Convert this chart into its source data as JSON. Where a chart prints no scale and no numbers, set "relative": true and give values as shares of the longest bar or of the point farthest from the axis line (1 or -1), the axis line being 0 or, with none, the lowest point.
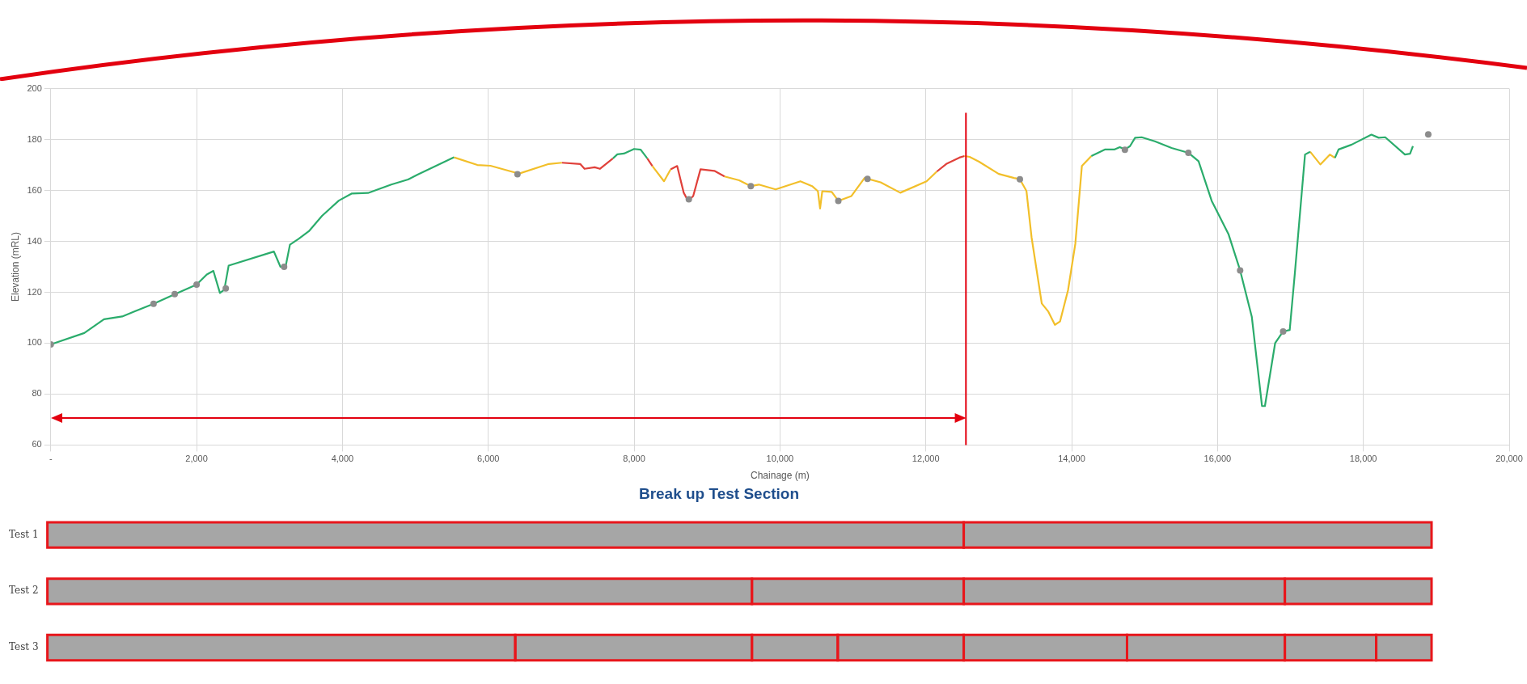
{
  "chart_data": [
    {
      "type": "line",
      "xlabel": "Chainage (m)",
      "ylabel": "Elevation (mRL)",
      "xlim": [
        0,
        20000
      ],
      "xticks": [
        {
          "value": 0,
          "label": "-"
        },
        {
          "value": 2000,
          "label": "2,000"
        },
        {
          "value": 4000,
          "label": "4,000"
        },
        {
          "value": 6000,
          "label": "6,000"
        },
        {
          "value": 8000,
          "label": "8,000"
        },
        {
          "value": 10000,
          "label": "10,000"
        },
        {
          "value": 12000,
          "label": "12,000"
        },
        {
          "value": 14000,
          "label": "14,000"
        },
        {
          "value": 16000,
          "label": "16,000"
        },
        {
          "value": 18000,
          "label": "18,000"
        },
        {
          "value": 20000,
          "label": "20,000"
        }
      ],
      "ylim": [
        60,
        200
      ],
      "yticks": [
        60,
        80,
        100,
        120,
        140,
        160,
        180,
        200
      ],
      "grid": true,
      "series": [
        {
          "type": "line",
          "marker": "none",
          "color": "#2bac6c",
          "x": [
            0,
            460,
            730,
            980,
            1140,
            1410,
            1680,
            2000,
            2140,
            2230,
            2320,
            2380,
            2440,
            3060,
            3150,
            3220,
            3280,
            3400,
            3540,
            3720,
            3950,
            4130,
            4350,
            4670,
            4900,
            5030,
            5530,
            6600,
            7710,
            7770,
            7860,
            8000,
            8090,
            8180,
            11000,
            14270,
            14460,
            14590,
            14660,
            14730,
            14800,
            14870,
            14960,
            15140,
            15370,
            15600,
            15740,
            15920,
            16150,
            16310,
            16470,
            16610,
            16650,
            16790,
            16900,
            16990,
            17060,
            17200,
            17270,
            17400,
            17610,
            17660,
            17840,
            18110,
            18210,
            18300,
            18570,
            18640,
            18680
          ],
          "values": [
            99.5,
            104,
            109.4,
            110.5,
            112.4,
            115.5,
            119,
            123,
            127,
            128.4,
            119.7,
            121,
            130.5,
            136,
            130,
            130,
            138.7,
            141,
            144,
            150,
            156,
            158.8,
            159,
            162.3,
            164.3,
            166.2,
            173,
            null,
            172.6,
            174.2,
            174.5,
            176.3,
            176,
            172.6,
            null,
            173.5,
            176.1,
            176.1,
            177,
            176.1,
            177.4,
            180.7,
            180.9,
            179.3,
            176.7,
            174.8,
            171.5,
            155.9,
            142.9,
            128.6,
            110.4,
            75.3,
            75.3,
            100,
            104.6,
            105.2,
            127.3,
            174.1,
            175.2,
            null,
            172.8,
            176.1,
            178,
            181.9,
            180.7,
            180.9,
            174.1,
            174.4,
            177.4
          ]
        },
        {
          "type": "line",
          "marker": "none",
          "color": "#f2bf2a",
          "x": [
            5530,
            5850,
            6030,
            6370,
            6400,
            6830,
            7010,
            7500,
            8250,
            8410,
            8500,
            8900,
            9240,
            9440,
            9600,
            9710,
            9940,
            10280,
            10440,
            10520,
            10550,
            10580,
            10710,
            10800,
            10980,
            11160,
            11380,
            11650,
            12010,
            12150,
            12300,
            12530,
            12600,
            12730,
            13000,
            13210,
            13290,
            13380,
            13450,
            13590,
            13680,
            13770,
            13840,
            13950,
            14050,
            14140,
            14270,
            16000,
            17270,
            17410,
            17540,
            17610
          ],
          "values": [
            173,
            170,
            169.7,
            167,
            166.4,
            170.4,
            170.9,
            null,
            169.6,
            163.6,
            168.3,
            null,
            165.5,
            164,
            161.7,
            162.3,
            160.4,
            163.6,
            161.7,
            159.7,
            152.9,
            159.7,
            159.4,
            155.9,
            157.8,
            164.9,
            163.2,
            159.1,
            163.6,
            167.4,
            null,
            173.5,
            173.2,
            171.3,
            166.5,
            164.9,
            164.4,
            159.8,
            141.6,
            115.6,
            112.4,
            107.2,
            108.5,
            120.8,
            139,
            169.6,
            173.5,
            null,
            175.2,
            170.2,
            174.1,
            172.8
          ]
        },
        {
          "type": "line",
          "marker": "none",
          "color": "#e0403a",
          "x": [
            7010,
            7260,
            7320,
            7460,
            7530,
            7710,
            7900,
            8180,
            8250,
            8350,
            8500,
            8590,
            8680,
            8740,
            8810,
            8910,
            9100,
            9240,
            10000,
            12150,
            12280,
            12460,
            12530
          ],
          "values": [
            170.9,
            170.4,
            168.5,
            169.1,
            168.5,
            172.6,
            null,
            172.6,
            169.6,
            null,
            168.3,
            169.6,
            159.1,
            155.9,
            157.8,
            168.3,
            167.7,
            165.5,
            null,
            167.4,
            170.4,
            172.9,
            173.5
          ]
        },
        {
          "type": "scatter",
          "marker": "circle",
          "color": "#8c8c8c",
          "x": [
            0,
            1410,
            1700,
            2000,
            2400,
            3200,
            6400,
            8750,
            9600,
            10800,
            11200,
            13290,
            14730,
            15600,
            16310,
            16900,
            18890
          ],
          "values": [
            99.5,
            115.5,
            119.3,
            123,
            121.5,
            130,
            166.4,
            156.5,
            161.7,
            155.9,
            164.5,
            164.4,
            176,
            174.8,
            128.6,
            104.6,
            182
          ]
        }
      ],
      "ref_lines": [
        {
          "axis": "x",
          "value": 12550,
          "color": "#e3000f"
        }
      ]
    },
    {
      "type": "bar",
      "title": "Break up Test Section",
      "orientation": "horizontal",
      "stacked": true,
      "relative": true,
      "tick_labels": "y",
      "categories": [
        "Test 1",
        "Test 2",
        "Test 3"
      ],
      "series": [
        {
          "color": "#a6a6a6",
          "values": [
            0.662,
            0.509,
            0.338
          ]
        },
        {
          "color": "#a6a6a6",
          "values": [
            0.338,
            0.153,
            0.171
          ]
        },
        {
          "color": "#a6a6a6",
          "values": [
            null,
            0.232,
            0.062
          ]
        },
        {
          "color": "#a6a6a6",
          "values": [
            null,
            0.106,
            0.091
          ]
        },
        {
          "color": "#a6a6a6",
          "values": [
            null,
            null,
            0.118
          ]
        },
        {
          "color": "#a6a6a6",
          "values": [
            null,
            null,
            0.114
          ]
        },
        {
          "color": "#a6a6a6",
          "values": [
            null,
            null,
            0.066
          ]
        },
        {
          "color": "#a6a6a6",
          "values": [
            null,
            null,
            0.04
          ]
        }
      ]
    }
  ]
}
